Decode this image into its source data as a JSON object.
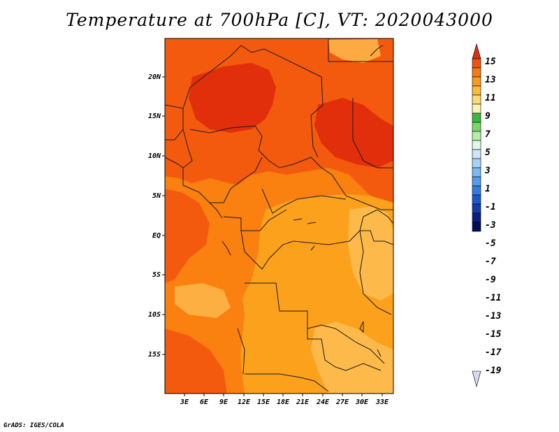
{
  "title": "Temperature at 700hPa [C], VT: 2020043000",
  "credit": "GrADS: IGES/COLA",
  "map": {
    "lat_labels": [
      "20N",
      "15N",
      "10N",
      "5N",
      "EQ",
      "5S",
      "10S",
      "15S"
    ],
    "lon_labels": [
      "3E",
      "6E",
      "9E",
      "12E",
      "15E",
      "18E",
      "21E",
      "24E",
      "27E",
      "30E",
      "33E"
    ],
    "field_colors": {
      "c7": "#fdb94a",
      "c9": "#fca11c",
      "c11": "#fa8010",
      "c13": "#f45a0e",
      "c15": "#e12f0c"
    },
    "border_color": "#1a1a1a"
  },
  "colorbar": {
    "labels": [
      "15",
      "13",
      "11",
      "9",
      "7",
      "5",
      "3",
      "1",
      "-1",
      "-3",
      "-5",
      "-7",
      "-9",
      "-11",
      "-13",
      "-15",
      "-17",
      "-19"
    ],
    "colors": [
      "#d4321a",
      "#f0520f",
      "#f77a12",
      "#fa9a1e",
      "#fbb93d",
      "#fddb74",
      "#fdf3b3",
      "#38b83e",
      "#76d86a",
      "#b2eea6",
      "#e0f7e6",
      "#cde6fa",
      "#a8d3f6",
      "#7db8f1",
      "#549bea",
      "#347bdf",
      "#1d58c8",
      "#133ca8",
      "#0b1e80",
      "#000f56"
    ],
    "low_arrow_color": "#d6d9f4"
  }
}
